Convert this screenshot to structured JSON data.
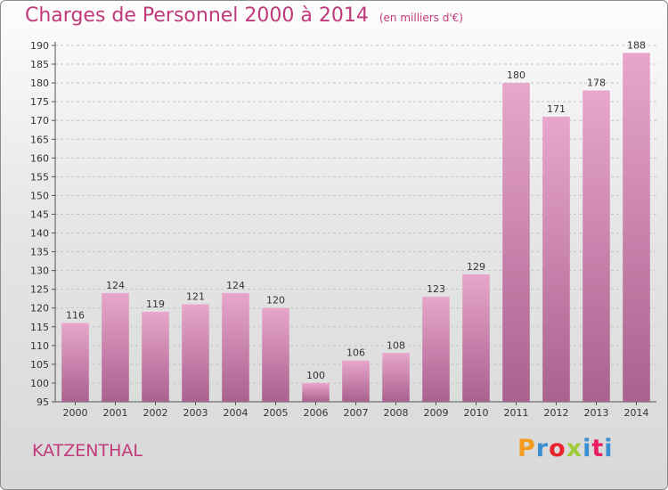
{
  "header": {
    "title": "Charges de Personnel 2000 à 2014",
    "subtitle": "(en milliers d'€)"
  },
  "footer": {
    "place": "KATZENTHAL",
    "logo_text": "Proxiti"
  },
  "colors": {
    "title": "#c0397a",
    "bar_top": "#e8a6cc",
    "bar_bottom": "#a8628e",
    "logo_letters": [
      "#f39c1f",
      "#3b8fd1",
      "#e8232a",
      "#9fcb3b",
      "#3b8fd1",
      "#e91e63",
      "#3b8fd1"
    ]
  },
  "chart_data": {
    "type": "bar",
    "title": "Charges de Personnel 2000 à 2014",
    "subtitle": "(en milliers d'€)",
    "xlabel": "",
    "ylabel": "",
    "categories": [
      "2000",
      "2001",
      "2002",
      "2003",
      "2004",
      "2005",
      "2006",
      "2007",
      "2008",
      "2009",
      "2010",
      "2011",
      "2012",
      "2013",
      "2014"
    ],
    "values": [
      116,
      124,
      119,
      121,
      124,
      120,
      100,
      106,
      108,
      123,
      129,
      180,
      171,
      178,
      188
    ],
    "ylim": [
      95,
      190
    ],
    "yticks": [
      95,
      100,
      105,
      110,
      115,
      120,
      125,
      130,
      135,
      140,
      145,
      150,
      155,
      160,
      165,
      170,
      175,
      180,
      185,
      190
    ],
    "grid": true,
    "data_labels": true,
    "legend": "none"
  }
}
